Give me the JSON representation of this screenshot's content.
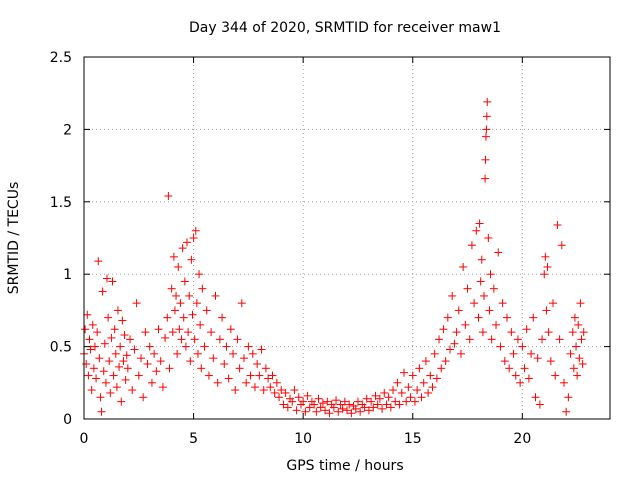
{
  "chart_data": {
    "type": "scatter",
    "title": "Day 344 of 2020, SRMTID for receiver maw1",
    "xlabel": "GPS time / hours",
    "ylabel": "SRMTID / TECUs",
    "xlim": [
      0,
      24
    ],
    "ylim": [
      0,
      2.5
    ],
    "xticks": [
      0,
      5,
      10,
      15,
      20
    ],
    "xtick_labels": [
      "0",
      "5",
      "10",
      "15",
      "20"
    ],
    "yticks": [
      0,
      0.5,
      1,
      1.5,
      2,
      2.5
    ],
    "ytick_labels": [
      "0",
      "0.5",
      "1",
      "1.5",
      "2",
      "2.5"
    ],
    "grid": true,
    "marker": "+",
    "color": "#ff0000",
    "series": [
      {
        "name": "SRMTID",
        "points": [
          [
            0.0,
            0.45
          ],
          [
            0.05,
            0.62
          ],
          [
            0.1,
            0.38
          ],
          [
            0.15,
            0.72
          ],
          [
            0.2,
            0.3
          ],
          [
            0.25,
            0.55
          ],
          [
            0.3,
            0.48
          ],
          [
            0.35,
            0.2
          ],
          [
            0.4,
            0.65
          ],
          [
            0.45,
            0.35
          ],
          [
            0.5,
            0.5
          ],
          [
            0.55,
            0.28
          ],
          [
            0.6,
            0.6
          ],
          [
            0.65,
            1.09
          ],
          [
            0.7,
            0.42
          ],
          [
            0.75,
            0.15
          ],
          [
            0.8,
            0.05
          ],
          [
            0.85,
            0.88
          ],
          [
            0.9,
            0.33
          ],
          [
            0.95,
            0.52
          ],
          [
            1.0,
            0.25
          ],
          [
            1.05,
            0.97
          ],
          [
            1.1,
            0.7
          ],
          [
            1.15,
            0.4
          ],
          [
            1.2,
            0.18
          ],
          [
            1.25,
            0.56
          ],
          [
            1.3,
            0.95
          ],
          [
            1.35,
            0.3
          ],
          [
            1.4,
            0.62
          ],
          [
            1.45,
            0.45
          ],
          [
            1.5,
            0.22
          ],
          [
            1.55,
            0.75
          ],
          [
            1.6,
            0.36
          ],
          [
            1.65,
            0.5
          ],
          [
            1.7,
            0.12
          ],
          [
            1.75,
            0.68
          ],
          [
            1.8,
            0.4
          ],
          [
            1.85,
            0.58
          ],
          [
            1.9,
            0.27
          ],
          [
            1.95,
            0.44
          ],
          [
            2.0,
            0.35
          ],
          [
            2.1,
            0.55
          ],
          [
            2.2,
            0.2
          ],
          [
            2.3,
            0.48
          ],
          [
            2.4,
            0.8
          ],
          [
            2.5,
            0.3
          ],
          [
            2.6,
            0.42
          ],
          [
            2.7,
            0.15
          ],
          [
            2.8,
            0.6
          ],
          [
            2.9,
            0.38
          ],
          [
            3.0,
            0.5
          ],
          [
            3.1,
            0.25
          ],
          [
            3.2,
            0.45
          ],
          [
            3.3,
            0.33
          ],
          [
            3.4,
            0.62
          ],
          [
            3.5,
            0.4
          ],
          [
            3.6,
            0.22
          ],
          [
            3.7,
            0.56
          ],
          [
            3.8,
            0.7
          ],
          [
            3.85,
            1.54
          ],
          [
            3.9,
            0.35
          ],
          [
            4.0,
            0.9
          ],
          [
            4.05,
            0.6
          ],
          [
            4.1,
            1.12
          ],
          [
            4.15,
            0.75
          ],
          [
            4.2,
            0.85
          ],
          [
            4.25,
            0.45
          ],
          [
            4.3,
            1.05
          ],
          [
            4.35,
            0.62
          ],
          [
            4.4,
            0.8
          ],
          [
            4.45,
            0.55
          ],
          [
            4.5,
            1.18
          ],
          [
            4.55,
            0.7
          ],
          [
            4.6,
            0.95
          ],
          [
            4.65,
            0.5
          ],
          [
            4.7,
            1.22
          ],
          [
            4.75,
            0.6
          ],
          [
            4.8,
            0.85
          ],
          [
            4.85,
            0.4
          ],
          [
            4.9,
            1.1
          ],
          [
            4.95,
            0.72
          ],
          [
            5.0,
            1.25
          ],
          [
            5.05,
            0.55
          ],
          [
            5.1,
            1.3
          ],
          [
            5.15,
            0.8
          ],
          [
            5.2,
            0.45
          ],
          [
            5.25,
            1.0
          ],
          [
            5.3,
            0.65
          ],
          [
            5.35,
            0.35
          ],
          [
            5.4,
            0.9
          ],
          [
            5.5,
            0.5
          ],
          [
            5.6,
            0.75
          ],
          [
            5.7,
            0.3
          ],
          [
            5.8,
            0.6
          ],
          [
            5.9,
            0.42
          ],
          [
            6.0,
            0.85
          ],
          [
            6.1,
            0.25
          ],
          [
            6.2,
            0.55
          ],
          [
            6.3,
            0.7
          ],
          [
            6.4,
            0.38
          ],
          [
            6.5,
            0.5
          ],
          [
            6.6,
            0.28
          ],
          [
            6.7,
            0.62
          ],
          [
            6.8,
            0.45
          ],
          [
            6.9,
            0.2
          ],
          [
            7.0,
            0.55
          ],
          [
            7.1,
            0.35
          ],
          [
            7.2,
            0.8
          ],
          [
            7.3,
            0.42
          ],
          [
            7.4,
            0.25
          ],
          [
            7.5,
            0.5
          ],
          [
            7.6,
            0.3
          ],
          [
            7.7,
            0.45
          ],
          [
            7.8,
            0.22
          ],
          [
            7.9,
            0.38
          ],
          [
            8.0,
            0.3
          ],
          [
            8.1,
            0.48
          ],
          [
            8.2,
            0.2
          ],
          [
            8.3,
            0.35
          ],
          [
            8.4,
            0.28
          ],
          [
            8.5,
            0.22
          ],
          [
            8.6,
            0.3
          ],
          [
            8.7,
            0.18
          ],
          [
            8.8,
            0.25
          ],
          [
            8.9,
            0.15
          ],
          [
            9.0,
            0.2
          ],
          [
            9.1,
            0.1
          ],
          [
            9.2,
            0.18
          ],
          [
            9.3,
            0.08
          ],
          [
            9.4,
            0.14
          ],
          [
            9.5,
            0.12
          ],
          [
            9.6,
            0.2
          ],
          [
            9.7,
            0.06
          ],
          [
            9.8,
            0.15
          ],
          [
            9.9,
            0.1
          ],
          [
            10.0,
            0.12
          ],
          [
            10.1,
            0.05
          ],
          [
            10.2,
            0.16
          ],
          [
            10.3,
            0.08
          ],
          [
            10.4,
            0.12
          ],
          [
            10.5,
            0.1
          ],
          [
            10.6,
            0.05
          ],
          [
            10.7,
            0.14
          ],
          [
            10.8,
            0.08
          ],
          [
            10.9,
            0.11
          ],
          [
            11.0,
            0.06
          ],
          [
            11.1,
            0.12
          ],
          [
            11.2,
            0.04
          ],
          [
            11.3,
            0.1
          ],
          [
            11.4,
            0.08
          ],
          [
            11.5,
            0.13
          ],
          [
            11.6,
            0.05
          ],
          [
            11.7,
            0.1
          ],
          [
            11.8,
            0.07
          ],
          [
            11.9,
            0.12
          ],
          [
            12.0,
            0.06
          ],
          [
            12.1,
            0.1
          ],
          [
            12.2,
            0.04
          ],
          [
            12.3,
            0.09
          ],
          [
            12.4,
            0.07
          ],
          [
            12.5,
            0.12
          ],
          [
            12.6,
            0.05
          ],
          [
            12.7,
            0.1
          ],
          [
            12.8,
            0.08
          ],
          [
            12.9,
            0.14
          ],
          [
            13.0,
            0.06
          ],
          [
            13.1,
            0.12
          ],
          [
            13.2,
            0.08
          ],
          [
            13.3,
            0.16
          ],
          [
            13.4,
            0.1
          ],
          [
            13.5,
            0.14
          ],
          [
            13.6,
            0.07
          ],
          [
            13.7,
            0.18
          ],
          [
            13.8,
            0.1
          ],
          [
            13.9,
            0.15
          ],
          [
            14.0,
            0.08
          ],
          [
            14.1,
            0.2
          ],
          [
            14.2,
            0.12
          ],
          [
            14.3,
            0.25
          ],
          [
            14.4,
            0.1
          ],
          [
            14.5,
            0.18
          ],
          [
            14.6,
            0.32
          ],
          [
            14.7,
            0.12
          ],
          [
            14.8,
            0.22
          ],
          [
            14.9,
            0.15
          ],
          [
            15.0,
            0.3
          ],
          [
            15.1,
            0.12
          ],
          [
            15.2,
            0.2
          ],
          [
            15.3,
            0.35
          ],
          [
            15.4,
            0.15
          ],
          [
            15.5,
            0.25
          ],
          [
            15.6,
            0.4
          ],
          [
            15.7,
            0.18
          ],
          [
            15.8,
            0.3
          ],
          [
            15.9,
            0.22
          ],
          [
            16.0,
            0.45
          ],
          [
            16.1,
            0.28
          ],
          [
            16.2,
            0.55
          ],
          [
            16.3,
            0.35
          ],
          [
            16.4,
            0.62
          ],
          [
            16.5,
            0.4
          ],
          [
            16.6,
            0.7
          ],
          [
            16.7,
            0.48
          ],
          [
            16.8,
            0.85
          ],
          [
            16.9,
            0.52
          ],
          [
            17.0,
            0.6
          ],
          [
            17.1,
            0.75
          ],
          [
            17.2,
            0.45
          ],
          [
            17.3,
            1.05
          ],
          [
            17.4,
            0.65
          ],
          [
            17.5,
            0.9
          ],
          [
            17.6,
            0.55
          ],
          [
            17.7,
            1.2
          ],
          [
            17.8,
            0.8
          ],
          [
            17.9,
            1.3
          ],
          [
            18.0,
            0.7
          ],
          [
            18.05,
            1.35
          ],
          [
            18.1,
            0.95
          ],
          [
            18.15,
            1.1
          ],
          [
            18.2,
            0.6
          ],
          [
            18.25,
            0.85
          ],
          [
            18.3,
            1.66
          ],
          [
            18.32,
            1.79
          ],
          [
            18.34,
            1.95
          ],
          [
            18.36,
            2.0
          ],
          [
            18.38,
            2.09
          ],
          [
            18.4,
            2.19
          ],
          [
            18.45,
            1.25
          ],
          [
            18.5,
            0.75
          ],
          [
            18.55,
            1.0
          ],
          [
            18.6,
            0.55
          ],
          [
            18.7,
            0.9
          ],
          [
            18.8,
            0.65
          ],
          [
            18.9,
            1.15
          ],
          [
            19.0,
            0.5
          ],
          [
            19.1,
            0.8
          ],
          [
            19.2,
            0.4
          ],
          [
            19.3,
            0.7
          ],
          [
            19.4,
            0.35
          ],
          [
            19.5,
            0.6
          ],
          [
            19.6,
            0.45
          ],
          [
            19.7,
            0.3
          ],
          [
            19.8,
            0.55
          ],
          [
            19.9,
            0.25
          ],
          [
            20.0,
            0.5
          ],
          [
            20.1,
            0.35
          ],
          [
            20.2,
            0.62
          ],
          [
            20.3,
            0.28
          ],
          [
            20.4,
            0.45
          ],
          [
            20.5,
            0.7
          ],
          [
            20.6,
            0.15
          ],
          [
            20.7,
            0.42
          ],
          [
            20.8,
            0.1
          ],
          [
            20.9,
            0.55
          ],
          [
            21.0,
            1.0
          ],
          [
            21.05,
            1.12
          ],
          [
            21.1,
            0.75
          ],
          [
            21.15,
            1.05
          ],
          [
            21.2,
            0.6
          ],
          [
            21.3,
            0.4
          ],
          [
            21.4,
            0.8
          ],
          [
            21.5,
            0.3
          ],
          [
            21.6,
            1.34
          ],
          [
            21.7,
            0.55
          ],
          [
            21.8,
            1.2
          ],
          [
            21.9,
            0.25
          ],
          [
            22.0,
            0.05
          ],
          [
            22.1,
            0.15
          ],
          [
            22.2,
            0.45
          ],
          [
            22.3,
            0.6
          ],
          [
            22.35,
            0.35
          ],
          [
            22.4,
            0.7
          ],
          [
            22.45,
            0.5
          ],
          [
            22.5,
            0.3
          ],
          [
            22.55,
            0.65
          ],
          [
            22.6,
            0.42
          ],
          [
            22.65,
            0.8
          ],
          [
            22.7,
            0.55
          ],
          [
            22.75,
            0.38
          ],
          [
            22.8,
            0.6
          ]
        ]
      }
    ]
  }
}
